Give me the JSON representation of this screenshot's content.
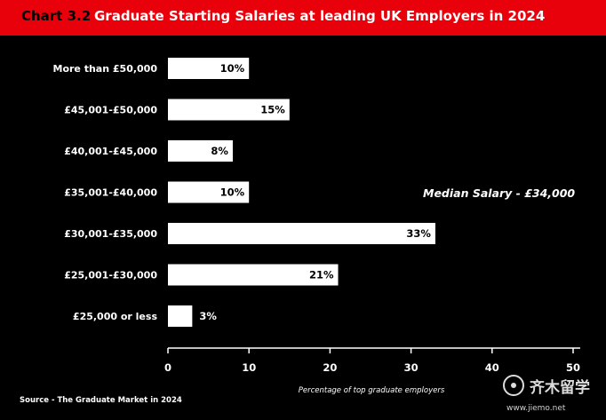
{
  "header": {
    "chart_number": "Chart 3.2",
    "title": "Graduate Starting Salaries at leading UK Employers in 2024"
  },
  "annotation": {
    "median": "Median Salary - £34,000"
  },
  "source": "Source - The Graduate Market in 2024",
  "watermark": {
    "brand": "齐木留学",
    "url": "www.jiemo.net"
  },
  "colors": {
    "background": "#000000",
    "header": "#e8000b",
    "bar": "#ffffff",
    "text": "#ffffff"
  },
  "chart_data": {
    "type": "bar",
    "orientation": "horizontal",
    "categories": [
      "More than £50,000",
      "£45,001-£50,000",
      "£40,001-£45,000",
      "£35,001-£40,000",
      "£30,001-£35,000",
      "£25,001-£30,000",
      "£25,000 or less"
    ],
    "values": [
      10,
      15,
      8,
      10,
      33,
      21,
      3
    ],
    "value_labels": [
      "10%",
      "15%",
      "8%",
      "10%",
      "33%",
      "21%",
      "3%"
    ],
    "xlabel": "Percentage of top graduate employers",
    "xlim": [
      0,
      50
    ],
    "xticks": [
      0,
      10,
      20,
      30,
      40,
      50
    ],
    "grid": false
  }
}
